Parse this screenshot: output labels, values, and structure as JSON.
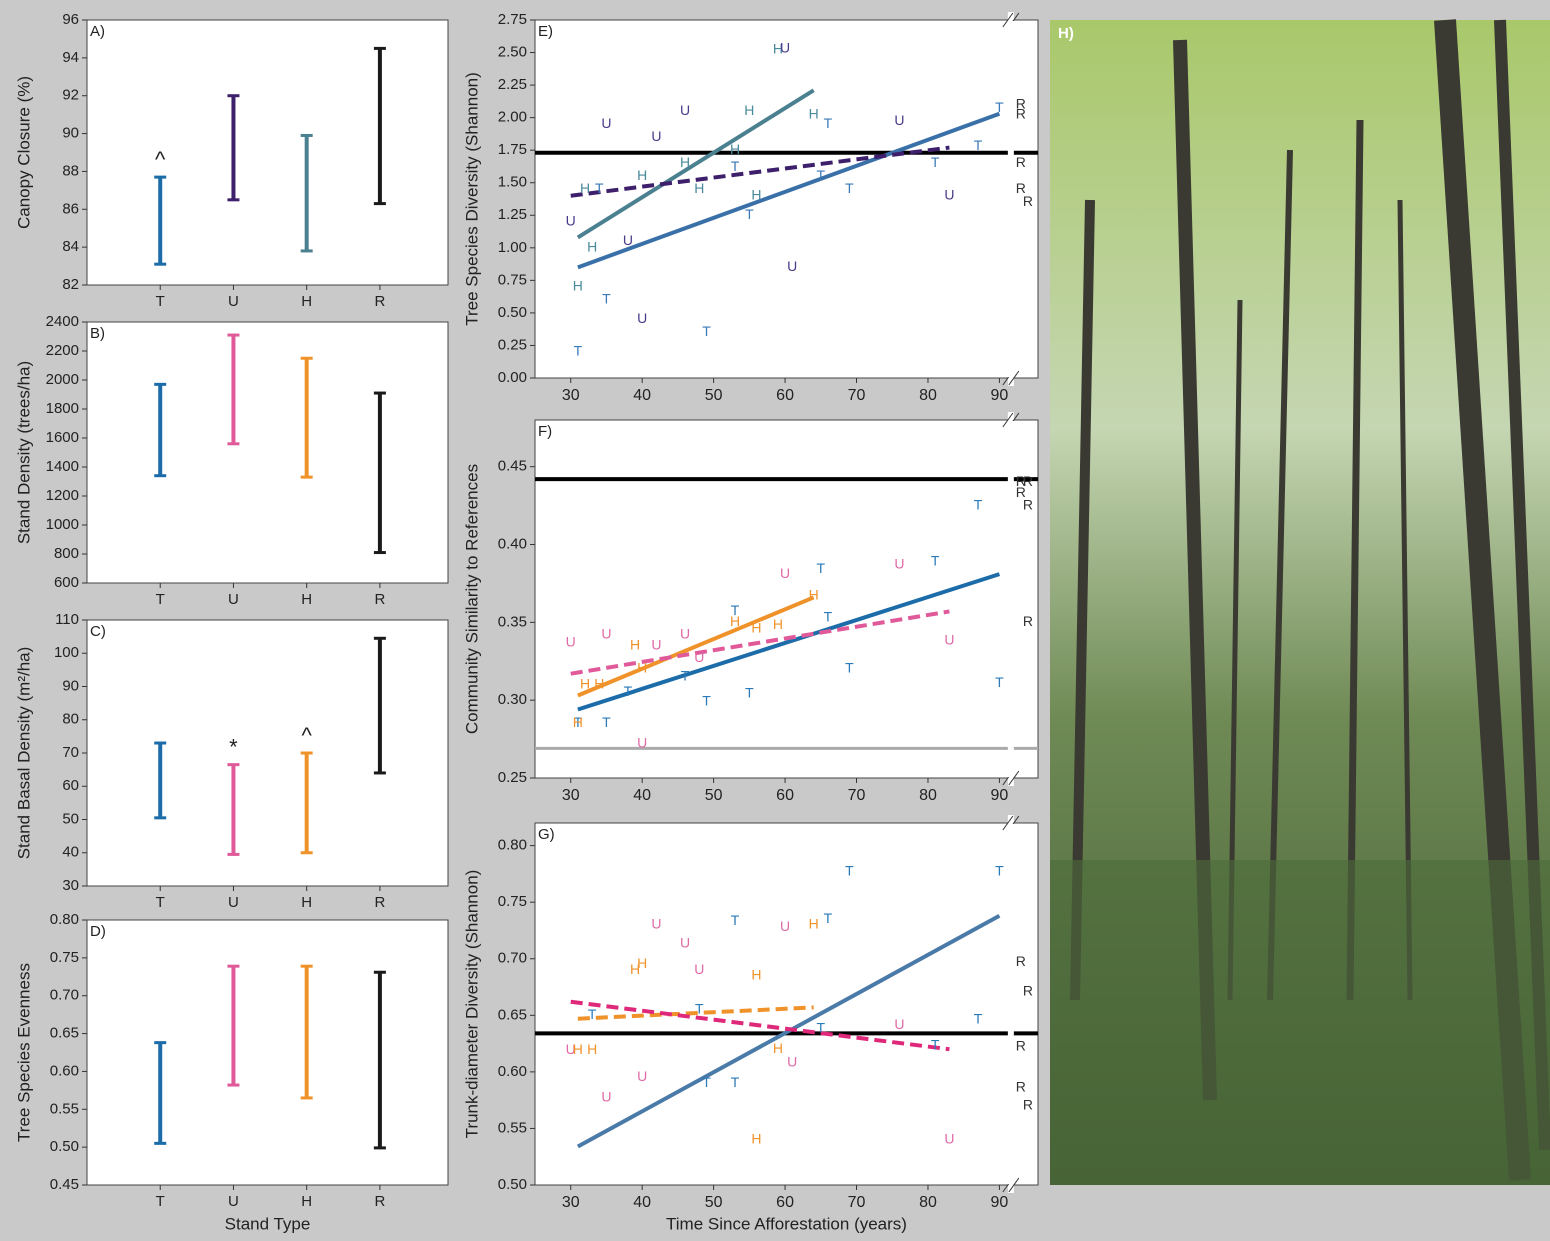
{
  "chart_data": [
    {
      "type": "range",
      "label": "A)",
      "ylabel": "Canopy Closure (%)",
      "categories": [
        "T",
        "U",
        "H",
        "R"
      ],
      "low": [
        83.1,
        86.5,
        83.8,
        86.3
      ],
      "high": [
        87.7,
        92,
        89.9,
        94.5
      ],
      "colors": [
        "#1b6ca8",
        "#3d1f6b",
        "#4a8090",
        "#1a1a1a"
      ],
      "annotations": [
        "^",
        null,
        null,
        null
      ],
      "ylim": [
        82,
        96
      ],
      "yticks": [
        82,
        84,
        86,
        88,
        90,
        92,
        94,
        96
      ]
    },
    {
      "type": "range",
      "label": "B)",
      "ylabel": "Stand Density (trees/ha)",
      "categories": [
        "T",
        "U",
        "H",
        "R"
      ],
      "low": [
        1340,
        1560,
        1330,
        810
      ],
      "high": [
        1970,
        2310,
        2150,
        1910
      ],
      "colors": [
        "#1b6ca8",
        "#e05a9a",
        "#f0922a",
        "#1a1a1a"
      ],
      "ylim": [
        600,
        2400
      ],
      "yticks": [
        600,
        800,
        1000,
        1200,
        1400,
        1600,
        1800,
        2000,
        2200,
        2400
      ]
    },
    {
      "type": "range",
      "label": "C)",
      "ylabel": "Stand Basal Density (m²/ha)",
      "categories": [
        "T",
        "U",
        "H",
        "R"
      ],
      "low": [
        50.5,
        39.5,
        40,
        64
      ],
      "high": [
        73,
        66.5,
        70,
        104.5
      ],
      "colors": [
        "#1b6ca8",
        "#e05a9a",
        "#f0922a",
        "#1a1a1a"
      ],
      "annotations": [
        null,
        "*",
        "^",
        null
      ],
      "ylim": [
        30,
        110
      ],
      "yticks": [
        30,
        40,
        50,
        60,
        70,
        80,
        90,
        100,
        110
      ]
    },
    {
      "type": "range",
      "label": "D)",
      "ylabel": "Tree Species Evenness",
      "xlabel": "Stand Type",
      "categories": [
        "T",
        "U",
        "H",
        "R"
      ],
      "low": [
        0.505,
        0.582,
        0.565,
        0.499
      ],
      "high": [
        0.638,
        0.739,
        0.739,
        0.731
      ],
      "colors": [
        "#1b6ca8",
        "#e05a9a",
        "#f0922a",
        "#1a1a1a"
      ],
      "ylim": [
        0.45,
        0.8
      ],
      "yticks": [
        0.45,
        {
          "value": 0.5,
          "label": "0.50"
        },
        0.55,
        {
          "value": 0.6,
          "label": "0.60"
        },
        0.65,
        {
          "value": 0.7,
          "label": "0.70"
        },
        0.75,
        {
          "value": 0.8,
          "label": "0.80"
        }
      ]
    },
    {
      "type": "scatter",
      "label": "E)",
      "ylabel": "Tree Species Diversity (Shannon)",
      "x": [
        31,
        31,
        30,
        33,
        32,
        34,
        35,
        35,
        38,
        40,
        40,
        42,
        46,
        46,
        48,
        49,
        53,
        53,
        55,
        55,
        56,
        59,
        60,
        61,
        64,
        66,
        65,
        69,
        76,
        81,
        83,
        87,
        90,
        93,
        93,
        93,
        93,
        94
      ],
      "y": [
        0.2,
        0.7,
        1.2,
        1.0,
        1.45,
        1.45,
        1.95,
        0.6,
        1.05,
        0.45,
        1.55,
        1.85,
        2.05,
        1.65,
        1.45,
        0.35,
        1.62,
        1.75,
        2.05,
        1.25,
        1.4,
        2.52,
        2.53,
        0.85,
        2.02,
        1.95,
        1.55,
        1.45,
        1.97,
        1.65,
        1.4,
        1.78,
        2.07,
        2.1,
        2.02,
        1.65,
        1.45,
        1.35
      ],
      "markers": [
        "T",
        "H",
        "U",
        "H",
        "H",
        "T",
        "U",
        "T",
        "U",
        "U",
        "H",
        "U",
        "U",
        "H",
        "H",
        "T",
        "T",
        "H",
        "H",
        "T",
        "H",
        "H",
        "U",
        "U",
        "H",
        "T",
        "T",
        "T",
        "U",
        "T",
        "U",
        "T",
        "T",
        "R",
        "R",
        "R",
        "R",
        "R"
      ],
      "marker_colors": {
        "T": "#3a7ab8",
        "U": "#4b3a8a",
        "H": "#4a8a9a",
        "R": "#333333"
      },
      "fits": [
        {
          "x": [
            31,
            64
          ],
          "y": [
            1.08,
            2.21
          ],
          "color": "#4a8090",
          "dash": false
        },
        {
          "x": [
            31,
            90
          ],
          "y": [
            0.85,
            2.03
          ],
          "color": "#3a70a8",
          "dash": false
        },
        {
          "x": [
            30,
            83
          ],
          "y": [
            1.4,
            1.77
          ],
          "color": "#3d1f6b",
          "dash": true
        }
      ],
      "references": [
        {
          "value": 1.73,
          "color": "#000000"
        }
      ],
      "xlim": [
        25,
        95.4
      ],
      "xticks": [
        30,
        40,
        50,
        60,
        70,
        80,
        90
      ],
      "ylim": [
        0,
        2.75
      ],
      "yticks": [
        {
          "value": 0,
          "label": "0.00"
        },
        0.25,
        {
          "value": 0.5,
          "label": "0.50"
        },
        0.75,
        {
          "value": 1,
          "label": "1.00"
        },
        1.25,
        {
          "value": 1.5,
          "label": "1.50"
        },
        1.75,
        {
          "value": 2,
          "label": "2.00"
        },
        2.25,
        {
          "value": 2.5,
          "label": "2.50"
        },
        2.75
      ]
    },
    {
      "type": "scatter",
      "label": "F)",
      "ylabel": "Community Similarity to References",
      "x": [
        30,
        31,
        31,
        32,
        34,
        35,
        35,
        39,
        38,
        40,
        42,
        40,
        46,
        46,
        48,
        49,
        53,
        53,
        56,
        55,
        59,
        60,
        64,
        65,
        66,
        69,
        76,
        81,
        83,
        87,
        90,
        93,
        94,
        93,
        94,
        94
      ],
      "y": [
        0.337,
        0.285,
        0.285,
        0.31,
        0.31,
        0.285,
        0.342,
        0.335,
        0.305,
        0.272,
        0.335,
        0.32,
        0.342,
        0.315,
        0.327,
        0.299,
        0.357,
        0.35,
        0.346,
        0.304,
        0.348,
        0.381,
        0.367,
        0.384,
        0.353,
        0.32,
        0.387,
        0.389,
        0.338,
        0.425,
        0.311,
        0.44,
        0.44,
        0.433,
        0.425,
        0.35
      ],
      "markers": [
        "U",
        "T",
        "H",
        "H",
        "H",
        "T",
        "U",
        "H",
        "T",
        "U",
        "U",
        "H",
        "U",
        "T",
        "U",
        "T",
        "T",
        "H",
        "H",
        "T",
        "H",
        "U",
        "H",
        "T",
        "T",
        "T",
        "U",
        "T",
        "U",
        "T",
        "T",
        "R",
        "R",
        "R",
        "R",
        "R"
      ],
      "marker_colors": {
        "T": "#2a7ab8",
        "U": "#e06aa5",
        "H": "#f0922a",
        "R": "#333333"
      },
      "fits": [
        {
          "x": [
            31,
            64
          ],
          "y": [
            0.303,
            0.366
          ],
          "color": "#f0922a",
          "dash": false
        },
        {
          "x": [
            31,
            90
          ],
          "y": [
            0.294,
            0.381
          ],
          "color": "#1b6ca8",
          "dash": false
        },
        {
          "x": [
            30,
            83
          ],
          "y": [
            0.317,
            0.357
          ],
          "color": "#e05a9a",
          "dash": true
        }
      ],
      "references": [
        {
          "value": 0.442,
          "color": "#000000"
        },
        {
          "value": 0.269,
          "color": "#aaaaaa"
        }
      ],
      "xlim": [
        25,
        95.4
      ],
      "xticks": [
        30,
        40,
        50,
        60,
        70,
        80,
        90
      ],
      "ylim": [
        0.25,
        0.48
      ],
      "yticks": [
        0.25,
        {
          "value": 0.3,
          "label": "0.30"
        },
        0.35,
        {
          "value": 0.4,
          "label": "0.40"
        },
        0.45
      ]
    },
    {
      "type": "scatter",
      "label": "G)",
      "ylabel": "Trunk-diameter Diversity (Shannon)",
      "xlabel": "Time Since Afforestation (years)",
      "x": [
        30,
        31,
        33,
        33,
        35,
        39,
        40,
        40,
        42,
        46,
        48,
        48,
        49,
        53,
        53,
        56,
        56,
        60,
        59,
        61,
        64,
        66,
        65,
        69,
        76,
        81,
        83,
        87,
        90,
        93,
        94,
        93,
        93,
        94
      ],
      "y": [
        0.619,
        0.619,
        0.619,
        0.65,
        0.577,
        0.69,
        0.695,
        0.595,
        0.73,
        0.713,
        0.69,
        0.655,
        0.59,
        0.733,
        0.59,
        0.685,
        0.54,
        0.728,
        0.62,
        0.608,
        0.73,
        0.735,
        0.638,
        0.777,
        0.641,
        0.623,
        0.54,
        0.646,
        0.777,
        0.697,
        0.671,
        0.622,
        0.586,
        0.57
      ],
      "markers": [
        "U",
        "H",
        "H",
        "T",
        "U",
        "H",
        "H",
        "U",
        "U",
        "U",
        "U",
        "T",
        "T",
        "T",
        "T",
        "H",
        "H",
        "U",
        "H",
        "U",
        "H",
        "T",
        "T",
        "T",
        "U",
        "T",
        "U",
        "T",
        "T",
        "R",
        "R",
        "R",
        "R",
        "R"
      ],
      "marker_colors": {
        "T": "#2a7ab8",
        "U": "#e06aa5",
        "H": "#f0922a",
        "R": "#333333"
      },
      "fits": [
        {
          "x": [
            31,
            90
          ],
          "y": [
            0.534,
            0.738
          ],
          "color": "#4a7aa8",
          "dash": false
        },
        {
          "x": [
            31,
            64
          ],
          "y": [
            0.647,
            0.657
          ],
          "color": "#f0922a",
          "dash": true
        },
        {
          "x": [
            30,
            83
          ],
          "y": [
            0.662,
            0.62
          ],
          "color": "#e0287a",
          "dash": true
        }
      ],
      "references": [
        {
          "value": 0.634,
          "color": "#000000"
        }
      ],
      "xlim": [
        25,
        95.4
      ],
      "xticks": [
        30,
        40,
        50,
        60,
        70,
        80,
        90
      ],
      "ylim": [
        0.5,
        0.82
      ],
      "yticks": [
        {
          "value": 0.5,
          "label": "0.50"
        },
        0.55,
        {
          "value": 0.6,
          "label": "0.60"
        },
        0.65,
        {
          "value": 0.7,
          "label": "0.70"
        },
        0.75,
        {
          "value": 0.8,
          "label": "0.80"
        }
      ]
    }
  ],
  "photo": {
    "label": "H)"
  }
}
